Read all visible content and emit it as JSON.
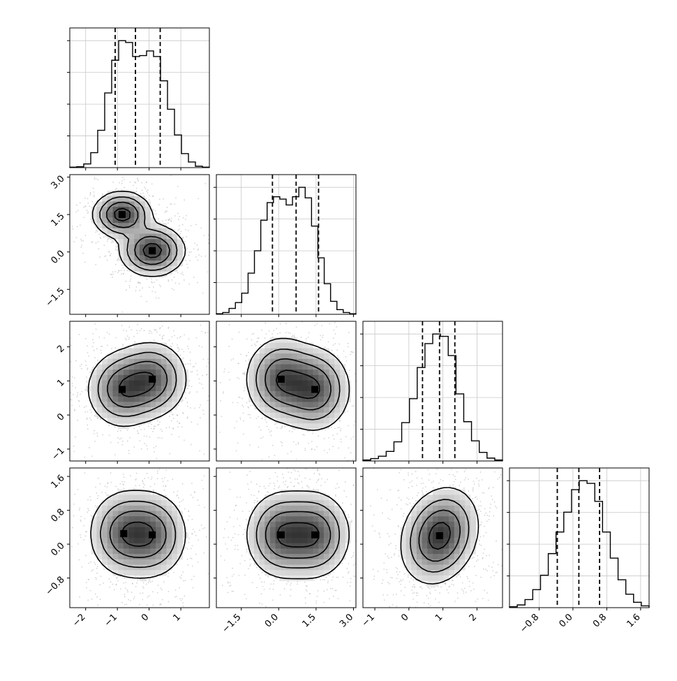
{
  "chart_data": {
    "type": "corner",
    "description_free": true,
    "params": [
      {
        "ticks": [
          -2,
          -1,
          0,
          1
        ],
        "tick_labels": [
          "−2",
          "−1",
          "0",
          "1"
        ],
        "range": [
          -2.5,
          1.9
        ],
        "quantiles": [
          -1.07,
          -0.43,
          0.35
        ]
      },
      {
        "ticks": [
          -1.5,
          0.0,
          1.5,
          3.0
        ],
        "tick_labels": [
          "−1.5",
          "0.0",
          "1.5",
          "3.0"
        ],
        "range": [
          -2.5,
          3.1
        ],
        "quantiles": [
          -0.25,
          0.7,
          1.6
        ]
      },
      {
        "ticks": [
          -1,
          0,
          1,
          2
        ],
        "tick_labels": [
          "−1",
          "0",
          "1",
          "2"
        ],
        "range": [
          -1.35,
          2.75
        ],
        "quantiles": [
          0.4,
          0.9,
          1.35
        ]
      },
      {
        "ticks": [
          -0.8,
          0.0,
          0.8,
          1.6
        ],
        "tick_labels": [
          "−0.8",
          "0.0",
          "0.8",
          "1.6"
        ],
        "range": [
          -1.5,
          1.8
        ],
        "quantiles": [
          -0.37,
          0.14,
          0.63
        ]
      }
    ],
    "histograms": [
      {
        "param": 0,
        "counts": [
          1,
          2,
          8,
          32,
          80,
          160,
          230,
          272,
          268,
          238,
          240,
          250,
          238,
          186,
          125,
          70,
          30,
          12,
          3,
          1
        ]
      },
      {
        "param": 1,
        "counts": [
          1,
          3,
          10,
          20,
          36,
          70,
          108,
          160,
          190,
          200,
          196,
          186,
          200,
          216,
          198,
          150,
          96,
          52,
          22,
          8,
          3,
          1
        ]
      },
      {
        "param": 2,
        "counts": [
          2,
          5,
          10,
          20,
          40,
          80,
          130,
          195,
          245,
          265,
          260,
          220,
          140,
          82,
          42,
          18,
          6,
          2
        ]
      },
      {
        "param": 3,
        "counts": [
          2,
          6,
          18,
          40,
          72,
          120,
          168,
          212,
          262,
          282,
          276,
          236,
          168,
          110,
          62,
          30,
          12,
          4
        ]
      }
    ],
    "panels_2d": [
      {
        "x": 0,
        "y": 1,
        "modes": [
          [
            -0.85,
            1.5,
            0.45,
            0.45,
            0.0
          ],
          [
            0.1,
            0.05,
            0.5,
            0.5,
            0.0
          ]
        ]
      },
      {
        "x": 0,
        "y": 2,
        "modes": [
          [
            -0.85,
            0.75,
            0.55,
            0.55,
            0.0
          ],
          [
            0.1,
            1.05,
            0.55,
            0.55,
            0.0
          ]
        ]
      },
      {
        "x": 1,
        "y": 2,
        "modes": [
          [
            0.1,
            1.05,
            0.7,
            0.6,
            0.0
          ],
          [
            1.45,
            0.75,
            0.7,
            0.6,
            0.0
          ]
        ]
      },
      {
        "x": 0,
        "y": 3,
        "modes": [
          [
            -0.8,
            0.25,
            0.55,
            0.5,
            0.0
          ],
          [
            0.1,
            0.22,
            0.55,
            0.5,
            0.0
          ]
        ]
      },
      {
        "x": 1,
        "y": 3,
        "modes": [
          [
            0.1,
            0.22,
            0.7,
            0.5,
            0.0
          ],
          [
            1.45,
            0.22,
            0.7,
            0.5,
            0.0
          ]
        ]
      },
      {
        "x": 2,
        "y": 3,
        "modes": [
          [
            0.9,
            0.2,
            0.55,
            0.55,
            0.2
          ]
        ]
      }
    ],
    "contour_levels": [
      0.85,
      0.55,
      0.3,
      0.12
    ],
    "grid": true,
    "colors": {
      "axes": "#000000",
      "grid": "#c8c8c8",
      "scatter": "#b0b0b0",
      "contour": "#000000"
    }
  }
}
